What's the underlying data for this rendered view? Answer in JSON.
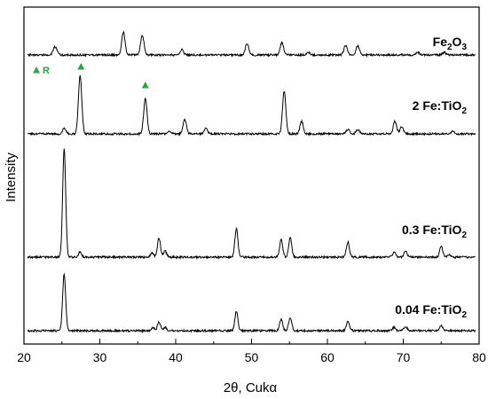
{
  "chart_data": {
    "type": "line",
    "title": "",
    "xlabel": "2θ, Cukα",
    "ylabel": "Intensity",
    "xlim": [
      20,
      80
    ],
    "xticks": [
      20,
      30,
      40,
      50,
      60,
      70,
      80
    ],
    "grid": false,
    "marker_color": "#27a644",
    "rutile_legend": {
      "symbol": "▲",
      "text": "R"
    },
    "rutile_markers_2theta": [
      27.4,
      36.0
    ],
    "series": [
      {
        "name": "Fe2O3",
        "label_main": "Fe",
        "label_sub": "2",
        "label_rest": "O",
        "label_sub2": "3",
        "peaks": [
          {
            "x": 24.1,
            "h": 9,
            "w": 0.25
          },
          {
            "x": 33.1,
            "h": 26,
            "w": 0.22
          },
          {
            "x": 35.6,
            "h": 22,
            "w": 0.22
          },
          {
            "x": 40.8,
            "h": 6,
            "w": 0.22
          },
          {
            "x": 49.4,
            "h": 13,
            "w": 0.22
          },
          {
            "x": 54.0,
            "h": 14,
            "w": 0.22
          },
          {
            "x": 57.5,
            "h": 3,
            "w": 0.22
          },
          {
            "x": 62.4,
            "h": 11,
            "w": 0.22
          },
          {
            "x": 64.0,
            "h": 10,
            "w": 0.22
          },
          {
            "x": 71.9,
            "h": 3,
            "w": 0.22
          },
          {
            "x": 75.4,
            "h": 3,
            "w": 0.22
          }
        ]
      },
      {
        "name": "2 Fe:TiO2",
        "label_main": "2 Fe:TiO",
        "label_sub": "2",
        "peaks": [
          {
            "x": 25.3,
            "h": 6,
            "w": 0.22
          },
          {
            "x": 27.4,
            "h": 66,
            "w": 0.22
          },
          {
            "x": 36.0,
            "h": 40,
            "w": 0.22
          },
          {
            "x": 39.2,
            "h": 3,
            "w": 0.22
          },
          {
            "x": 41.2,
            "h": 16,
            "w": 0.22
          },
          {
            "x": 44.0,
            "h": 6,
            "w": 0.22
          },
          {
            "x": 54.3,
            "h": 48,
            "w": 0.22
          },
          {
            "x": 56.6,
            "h": 14,
            "w": 0.22
          },
          {
            "x": 62.7,
            "h": 5,
            "w": 0.22
          },
          {
            "x": 64.0,
            "h": 5,
            "w": 0.22
          },
          {
            "x": 68.9,
            "h": 14,
            "w": 0.22
          },
          {
            "x": 69.8,
            "h": 8,
            "w": 0.22
          },
          {
            "x": 76.5,
            "h": 3,
            "w": 0.22
          }
        ]
      },
      {
        "name": "0.3 Fe:TiO2",
        "label_main": "0.3 Fe:TiO",
        "label_sub": "2",
        "peaks": [
          {
            "x": 25.3,
            "h": 122,
            "w": 0.2
          },
          {
            "x": 27.4,
            "h": 6,
            "w": 0.2
          },
          {
            "x": 36.9,
            "h": 5,
            "w": 0.2
          },
          {
            "x": 37.8,
            "h": 22,
            "w": 0.2
          },
          {
            "x": 38.6,
            "h": 7,
            "w": 0.2
          },
          {
            "x": 48.0,
            "h": 32,
            "w": 0.2
          },
          {
            "x": 53.9,
            "h": 20,
            "w": 0.2
          },
          {
            "x": 55.1,
            "h": 22,
            "w": 0.2
          },
          {
            "x": 62.7,
            "h": 17,
            "w": 0.2
          },
          {
            "x": 68.8,
            "h": 6,
            "w": 0.2
          },
          {
            "x": 70.3,
            "h": 7,
            "w": 0.2
          },
          {
            "x": 75.0,
            "h": 12,
            "w": 0.2
          },
          {
            "x": 76.0,
            "h": 3,
            "w": 0.2
          }
        ]
      },
      {
        "name": "0.04 Fe:TiO2",
        "label_main": "0.04 Fe:TiO",
        "label_sub": "2",
        "peaks": [
          {
            "x": 25.3,
            "h": 64,
            "w": 0.2
          },
          {
            "x": 37.0,
            "h": 4,
            "w": 0.2
          },
          {
            "x": 37.8,
            "h": 10,
            "w": 0.2
          },
          {
            "x": 38.6,
            "h": 4,
            "w": 0.2
          },
          {
            "x": 48.0,
            "h": 22,
            "w": 0.2
          },
          {
            "x": 53.9,
            "h": 13,
            "w": 0.2
          },
          {
            "x": 55.1,
            "h": 15,
            "w": 0.2
          },
          {
            "x": 62.7,
            "h": 10,
            "w": 0.2
          },
          {
            "x": 68.8,
            "h": 4,
            "w": 0.2
          },
          {
            "x": 70.3,
            "h": 5,
            "w": 0.2
          },
          {
            "x": 75.0,
            "h": 6,
            "w": 0.2
          }
        ]
      }
    ]
  }
}
